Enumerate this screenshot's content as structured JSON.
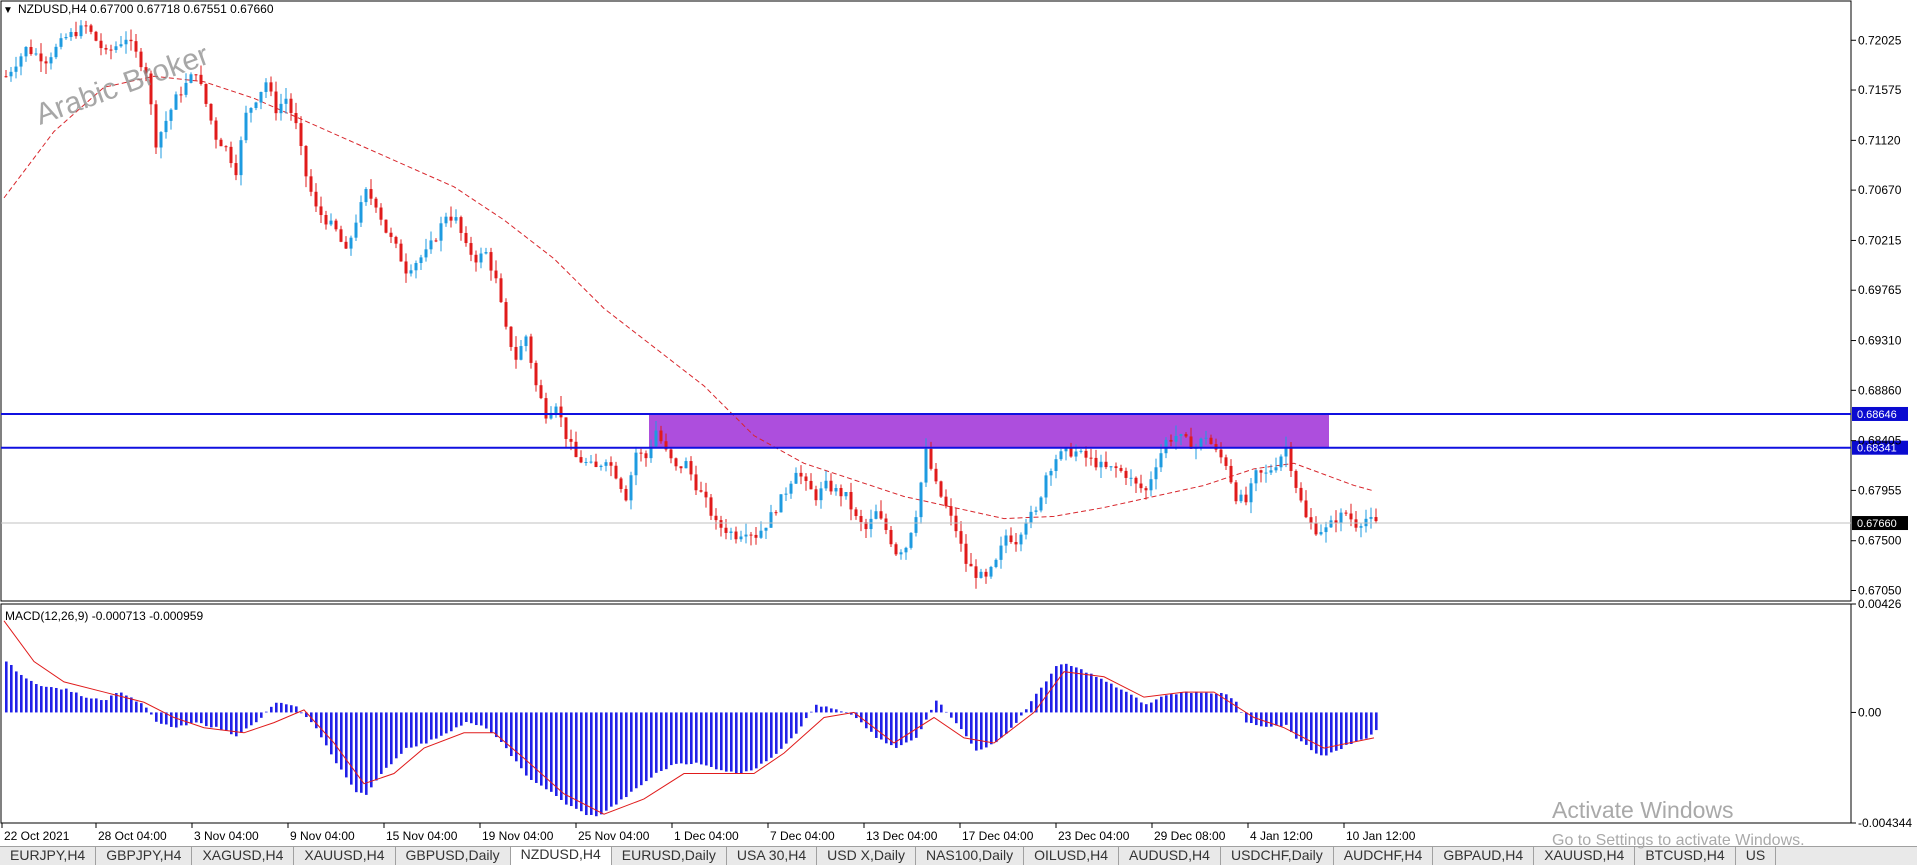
{
  "header": {
    "symbol_line": "NZDUSD,H4  0.67700 0.67718 0.67551 0.67660"
  },
  "watermark_text": "Arabic Broker",
  "activate": {
    "title": "Activate Windows",
    "subtitle": "Go to Settings to activate Windows."
  },
  "tabs": [
    {
      "label": "EURJPY,H4",
      "active": false
    },
    {
      "label": "GBPJPY,H4",
      "active": false
    },
    {
      "label": "XAGUSD,H4",
      "active": false
    },
    {
      "label": "XAUUSD,H4",
      "active": false
    },
    {
      "label": "GBPUSD,Daily",
      "active": false
    },
    {
      "label": "NZDUSD,H4",
      "active": true
    },
    {
      "label": "EURUSD,Daily",
      "active": false
    },
    {
      "label": "USA 30,H4",
      "active": false
    },
    {
      "label": "USD X,Daily",
      "active": false
    },
    {
      "label": "NAS100,Daily",
      "active": false
    },
    {
      "label": "OILUSD,H4",
      "active": false
    },
    {
      "label": "AUDUSD,H4",
      "active": false
    },
    {
      "label": "USDCHF,Daily",
      "active": false
    },
    {
      "label": "AUDCHF,H4",
      "active": false
    },
    {
      "label": "GBPAUD,H4",
      "active": false
    },
    {
      "label": "XAUUSD,H4",
      "active": false
    },
    {
      "label": "BTCUSD,H4",
      "active": false
    },
    {
      "label": "US",
      "active": false
    }
  ],
  "colors": {
    "bull": "#1e9be0",
    "bear": "#e01b1b",
    "ma": "#d8262c",
    "level": "#1010e0",
    "zone": "#a236d8",
    "macd_hist": "#2020e8",
    "macd_signal": "#e01b1b",
    "current_price_bg": "#000000"
  },
  "chart_data": [
    {
      "type": "candlestick",
      "symbol": "NZDUSD",
      "timeframe": "H4",
      "ohlc_header": {
        "open": 0.677,
        "high": 0.67718,
        "low": 0.67551,
        "close": 0.6766
      },
      "y_ticks": [
        "0.72025",
        "0.71575",
        "0.71120",
        "0.70670",
        "0.70215",
        "0.69765",
        "0.69310",
        "0.68860",
        "0.68405",
        "0.67955",
        "0.67500",
        "0.67050"
      ],
      "ylim": [
        0.66955,
        0.7238
      ],
      "x_ticks": [
        "22 Oct 2021",
        "28 Oct 04:00",
        "3 Nov 04:00",
        "9 Nov 04:00",
        "15 Nov 04:00",
        "19 Nov 04:00",
        "25 Nov 04:00",
        "1 Dec 04:00",
        "7 Dec 04:00",
        "13 Dec 04:00",
        "17 Dec 04:00",
        "23 Dec 04:00",
        "29 Dec 08:00",
        "4 Jan 12:00",
        "10 Jan 12:00"
      ],
      "close_path": [
        [
          0,
          0.717
        ],
        [
          4,
          0.7195
        ],
        [
          8,
          0.7185
        ],
        [
          12,
          0.7205
        ],
        [
          16,
          0.7215
        ],
        [
          20,
          0.719
        ],
        [
          24,
          0.7205
        ],
        [
          28,
          0.7175
        ],
        [
          30,
          0.711
        ],
        [
          34,
          0.715
        ],
        [
          38,
          0.7175
        ],
        [
          40,
          0.7145
        ],
        [
          42,
          0.7115
        ],
        [
          44,
          0.7105
        ],
        [
          46,
          0.7085
        ],
        [
          48,
          0.7135
        ],
        [
          52,
          0.7165
        ],
        [
          54,
          0.714
        ],
        [
          56,
          0.715
        ],
        [
          58,
          0.7125
        ],
        [
          60,
          0.708
        ],
        [
          62,
          0.705
        ],
        [
          66,
          0.703
        ],
        [
          68,
          0.701
        ],
        [
          70,
          0.704
        ],
        [
          72,
          0.7065
        ],
        [
          74,
          0.7055
        ],
        [
          76,
          0.703
        ],
        [
          78,
          0.7015
        ],
        [
          80,
          0.6995
        ],
        [
          84,
          0.701
        ],
        [
          86,
          0.7025
        ],
        [
          88,
          0.7045
        ],
        [
          90,
          0.704
        ],
        [
          92,
          0.7015
        ],
        [
          94,
          0.7005
        ],
        [
          96,
          0.701
        ],
        [
          98,
          0.6985
        ],
        [
          100,
          0.694
        ],
        [
          102,
          0.6915
        ],
        [
          104,
          0.6935
        ],
        [
          106,
          0.689
        ],
        [
          108,
          0.6865
        ],
        [
          110,
          0.6875
        ],
        [
          112,
          0.6845
        ],
        [
          114,
          0.6825
        ],
        [
          118,
          0.6815
        ],
        [
          120,
          0.6825
        ],
        [
          122,
          0.681
        ],
        [
          124,
          0.679
        ],
        [
          126,
          0.683
        ],
        [
          128,
          0.6825
        ],
        [
          130,
          0.685
        ],
        [
          132,
          0.683
        ],
        [
          134,
          0.6815
        ],
        [
          136,
          0.682
        ],
        [
          138,
          0.68
        ],
        [
          140,
          0.6785
        ],
        [
          142,
          0.6765
        ],
        [
          144,
          0.676
        ],
        [
          146,
          0.6755
        ],
        [
          148,
          0.676
        ],
        [
          150,
          0.6755
        ],
        [
          152,
          0.6765
        ],
        [
          154,
          0.678
        ],
        [
          156,
          0.6795
        ],
        [
          158,
          0.6815
        ],
        [
          160,
          0.68
        ],
        [
          162,
          0.679
        ],
        [
          164,
          0.68
        ],
        [
          166,
          0.6795
        ],
        [
          168,
          0.679
        ],
        [
          170,
          0.677
        ],
        [
          172,
          0.676
        ],
        [
          174,
          0.6775
        ],
        [
          176,
          0.676
        ],
        [
          178,
          0.674
        ],
        [
          180,
          0.6745
        ],
        [
          182,
          0.6775
        ],
        [
          184,
          0.683
        ],
        [
          186,
          0.68
        ],
        [
          188,
          0.678
        ],
        [
          190,
          0.676
        ],
        [
          192,
          0.673
        ],
        [
          194,
          0.672
        ],
        [
          196,
          0.6715
        ],
        [
          198,
          0.673
        ],
        [
          200,
          0.6755
        ],
        [
          202,
          0.675
        ],
        [
          204,
          0.677
        ],
        [
          206,
          0.6775
        ],
        [
          208,
          0.681
        ],
        [
          210,
          0.6825
        ],
        [
          212,
          0.683
        ],
        [
          214,
          0.683
        ],
        [
          216,
          0.6825
        ],
        [
          218,
          0.682
        ],
        [
          220,
          0.6815
        ],
        [
          222,
          0.6815
        ],
        [
          224,
          0.681
        ],
        [
          226,
          0.68
        ],
        [
          228,
          0.6795
        ],
        [
          230,
          0.682
        ],
        [
          232,
          0.684
        ],
        [
          234,
          0.6845
        ],
        [
          236,
          0.684
        ],
        [
          238,
          0.6835
        ],
        [
          240,
          0.6845
        ],
        [
          242,
          0.683
        ],
        [
          244,
          0.682
        ],
        [
          246,
          0.679
        ],
        [
          248,
          0.6785
        ],
        [
          250,
          0.681
        ],
        [
          252,
          0.681
        ],
        [
          254,
          0.682
        ],
        [
          256,
          0.6835
        ],
        [
          258,
          0.68
        ],
        [
          260,
          0.677
        ],
        [
          262,
          0.676
        ],
        [
          264,
          0.676
        ],
        [
          266,
          0.677
        ],
        [
          268,
          0.6775
        ],
        [
          270,
          0.6765
        ],
        [
          272,
          0.677
        ],
        [
          274,
          0.6765
        ]
      ],
      "ma_path": [
        [
          0,
          0.706
        ],
        [
          10,
          0.712
        ],
        [
          20,
          0.716
        ],
        [
          30,
          0.717
        ],
        [
          40,
          0.7165
        ],
        [
          50,
          0.715
        ],
        [
          60,
          0.713
        ],
        [
          70,
          0.711
        ],
        [
          80,
          0.709
        ],
        [
          90,
          0.707
        ],
        [
          100,
          0.704
        ],
        [
          110,
          0.7005
        ],
        [
          120,
          0.696
        ],
        [
          130,
          0.6925
        ],
        [
          140,
          0.689
        ],
        [
          150,
          0.6845
        ],
        [
          160,
          0.682
        ],
        [
          170,
          0.6805
        ],
        [
          180,
          0.679
        ],
        [
          190,
          0.678
        ],
        [
          200,
          0.677
        ],
        [
          210,
          0.6772
        ],
        [
          220,
          0.678
        ],
        [
          230,
          0.679
        ],
        [
          240,
          0.68
        ],
        [
          250,
          0.6815
        ],
        [
          258,
          0.682
        ],
        [
          264,
          0.681
        ],
        [
          270,
          0.68
        ],
        [
          274,
          0.6795
        ]
      ],
      "levels": [
        0.68646,
        0.68341
      ],
      "level_labels": [
        "0.68646",
        "0.68341"
      ],
      "current_price": 0.6766,
      "current_price_label": "0.67660",
      "zone": {
        "from_bar": 129,
        "to_bar": 265,
        "high": 0.68646,
        "low": 0.68341
      },
      "bars_total": 275
    },
    {
      "type": "bar",
      "name": "MACD(12,26,9) -0.000713 -0.000959",
      "y_ticks": [
        "0.00426",
        "0.00",
        "-0.004344"
      ],
      "ylim": [
        -0.004344,
        0.00426
      ],
      "hist_path": [
        [
          0,
          0.002
        ],
        [
          4,
          0.0013
        ],
        [
          8,
          0.001
        ],
        [
          12,
          0.0009
        ],
        [
          16,
          0.0006
        ],
        [
          20,
          0.0005
        ],
        [
          22,
          0.0008
        ],
        [
          24,
          0.0007
        ],
        [
          28,
          0.0002
        ],
        [
          30,
          -0.0004
        ],
        [
          34,
          -0.0006
        ],
        [
          38,
          -0.0004
        ],
        [
          42,
          -0.0006
        ],
        [
          46,
          -0.0009
        ],
        [
          50,
          -0.0004
        ],
        [
          54,
          0.0004
        ],
        [
          58,
          0.0002
        ],
        [
          62,
          -0.0006
        ],
        [
          66,
          -0.002
        ],
        [
          70,
          -0.0031
        ],
        [
          72,
          -0.0032
        ],
        [
          76,
          -0.0022
        ],
        [
          80,
          -0.0014
        ],
        [
          84,
          -0.0012
        ],
        [
          88,
          -0.0008
        ],
        [
          92,
          -0.0004
        ],
        [
          96,
          -0.0006
        ],
        [
          100,
          -0.0014
        ],
        [
          104,
          -0.0025
        ],
        [
          108,
          -0.003
        ],
        [
          112,
          -0.0036
        ],
        [
          116,
          -0.004
        ],
        [
          118,
          -0.0041
        ],
        [
          122,
          -0.0036
        ],
        [
          126,
          -0.003
        ],
        [
          130,
          -0.0024
        ],
        [
          134,
          -0.002
        ],
        [
          138,
          -0.002
        ],
        [
          142,
          -0.0022
        ],
        [
          146,
          -0.0024
        ],
        [
          150,
          -0.0022
        ],
        [
          154,
          -0.0016
        ],
        [
          158,
          -0.0008
        ],
        [
          162,
          0.0003
        ],
        [
          166,
          0.0001
        ],
        [
          170,
          -0.0002
        ],
        [
          174,
          -0.001
        ],
        [
          178,
          -0.0014
        ],
        [
          182,
          -0.001
        ],
        [
          186,
          0.0005
        ],
        [
          190,
          -0.0004
        ],
        [
          194,
          -0.0015
        ],
        [
          198,
          -0.0012
        ],
        [
          202,
          -0.0004
        ],
        [
          206,
          0.0007
        ],
        [
          210,
          0.0018
        ],
        [
          212,
          0.0019
        ],
        [
          216,
          0.0016
        ],
        [
          220,
          0.0012
        ],
        [
          224,
          0.0008
        ],
        [
          228,
          0.0003
        ],
        [
          232,
          0.0007
        ],
        [
          236,
          0.0008
        ],
        [
          240,
          0.0008
        ],
        [
          244,
          0.0007
        ],
        [
          246,
          0.0004
        ],
        [
          248,
          -0.0004
        ],
        [
          252,
          -0.0006
        ],
        [
          256,
          -0.0005
        ],
        [
          258,
          -0.001
        ],
        [
          262,
          -0.0016
        ],
        [
          264,
          -0.0017
        ],
        [
          268,
          -0.0013
        ],
        [
          272,
          -0.001
        ],
        [
          274,
          -0.0007
        ]
      ],
      "signal_path": [
        [
          0,
          0.0036
        ],
        [
          6,
          0.002
        ],
        [
          12,
          0.0012
        ],
        [
          20,
          0.0008
        ],
        [
          28,
          0.0004
        ],
        [
          34,
          -0.0002
        ],
        [
          40,
          -0.0006
        ],
        [
          48,
          -0.0008
        ],
        [
          54,
          -0.0004
        ],
        [
          60,
          0.0001
        ],
        [
          66,
          -0.0012
        ],
        [
          72,
          -0.0028
        ],
        [
          78,
          -0.0024
        ],
        [
          84,
          -0.0014
        ],
        [
          92,
          -0.0008
        ],
        [
          98,
          -0.0008
        ],
        [
          104,
          -0.0018
        ],
        [
          112,
          -0.0032
        ],
        [
          120,
          -0.004
        ],
        [
          128,
          -0.0034
        ],
        [
          136,
          -0.0024
        ],
        [
          144,
          -0.0024
        ],
        [
          150,
          -0.0024
        ],
        [
          156,
          -0.0016
        ],
        [
          164,
          -0.0002
        ],
        [
          170,
          0.0
        ],
        [
          178,
          -0.0012
        ],
        [
          186,
          -0.0002
        ],
        [
          192,
          -0.001
        ],
        [
          198,
          -0.0012
        ],
        [
          206,
          0.0
        ],
        [
          212,
          0.0016
        ],
        [
          220,
          0.0014
        ],
        [
          228,
          0.0006
        ],
        [
          236,
          0.0008
        ],
        [
          242,
          0.0008
        ],
        [
          250,
          -0.0002
        ],
        [
          256,
          -0.0006
        ],
        [
          264,
          -0.0014
        ],
        [
          274,
          -0.001
        ]
      ]
    }
  ]
}
